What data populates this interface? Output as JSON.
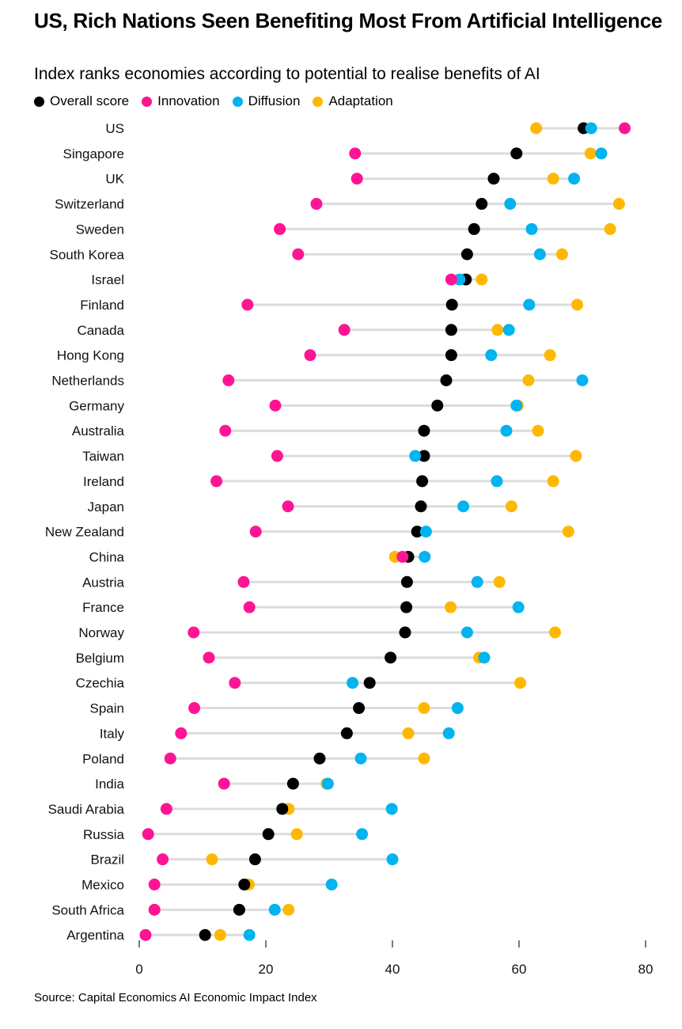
{
  "chart_data": {
    "type": "scatter",
    "title": "US, Rich Nations Seen Benefiting Most From Artificial Intelligence",
    "subtitle": "Index ranks economies according to potential to realise benefits of AI",
    "source": "Source: Capital Economics AI Economic Impact Index",
    "xlim": [
      0,
      80
    ],
    "xticks": [
      0,
      20,
      40,
      60,
      80
    ],
    "grid": false,
    "legend_position": "top-left",
    "categories": [
      "US",
      "Singapore",
      "UK",
      "Switzerland",
      "Sweden",
      "South Korea",
      "Israel",
      "Finland",
      "Canada",
      "Hong Kong",
      "Netherlands",
      "Germany",
      "Australia",
      "Taiwan",
      "Ireland",
      "Japan",
      "New Zealand",
      "China",
      "Austria",
      "France",
      "Norway",
      "Belgium",
      "Czechia",
      "Spain",
      "Italy",
      "Poland",
      "India",
      "Saudi Arabia",
      "Russia",
      "Brazil",
      "Mexico",
      "South Africa",
      "Argentina"
    ],
    "series": [
      {
        "name": "Overall score",
        "color": "#000000",
        "values": [
          70.2,
          59.6,
          56.0,
          54.1,
          52.9,
          51.8,
          51.6,
          49.4,
          49.3,
          49.3,
          48.5,
          47.1,
          45.0,
          45.0,
          44.7,
          44.5,
          43.9,
          42.5,
          42.3,
          42.2,
          42.0,
          39.7,
          36.4,
          34.7,
          32.8,
          28.5,
          24.3,
          22.6,
          20.4,
          18.3,
          16.6,
          15.8,
          10.4
        ]
      },
      {
        "name": "Innovation",
        "color": "#ff1493",
        "values": [
          76.7,
          34.1,
          34.4,
          28.0,
          22.2,
          25.1,
          49.3,
          17.1,
          32.4,
          27.0,
          14.1,
          21.5,
          13.6,
          21.8,
          12.2,
          23.5,
          18.4,
          41.6,
          16.5,
          17.4,
          8.6,
          11.0,
          15.1,
          8.7,
          6.6,
          4.9,
          13.4,
          4.3,
          1.4,
          3.7,
          2.4,
          2.4,
          1.0
        ]
      },
      {
        "name": "Diffusion",
        "color": "#00b4f0",
        "values": [
          71.4,
          73.0,
          68.7,
          58.6,
          62.0,
          63.3,
          50.6,
          61.6,
          58.4,
          55.6,
          70.0,
          59.6,
          58.0,
          43.6,
          56.5,
          51.2,
          45.3,
          45.1,
          53.4,
          59.9,
          51.8,
          54.5,
          33.7,
          50.3,
          48.9,
          35.0,
          29.8,
          39.9,
          35.2,
          40.0,
          30.4,
          21.4,
          17.4
        ]
      },
      {
        "name": "Adaptation",
        "color": "#ffb800",
        "values": [
          62.7,
          71.3,
          65.4,
          75.8,
          74.4,
          66.8,
          54.1,
          69.2,
          56.6,
          64.9,
          61.5,
          59.8,
          63.0,
          69.0,
          65.4,
          58.8,
          67.8,
          40.4,
          56.9,
          49.2,
          65.7,
          53.7,
          60.2,
          45.0,
          42.5,
          45.0,
          29.6,
          23.6,
          24.9,
          11.5,
          17.3,
          23.6,
          12.8
        ]
      }
    ]
  }
}
